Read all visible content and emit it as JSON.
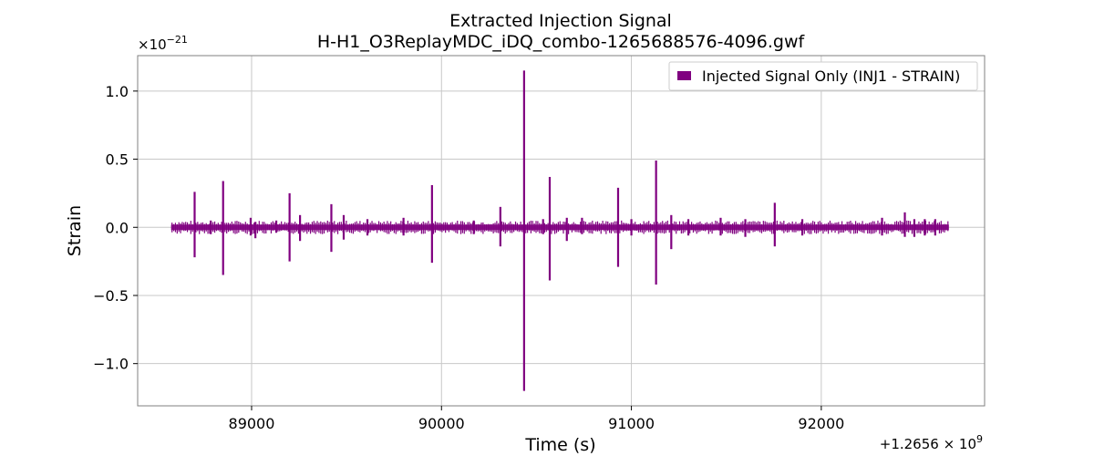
{
  "chart_data": {
    "type": "line",
    "title_line1": "Extracted Injection Signal",
    "title_line2": "H-H1_O3ReplayMDC_iDQ_combo-1265688576-4096.gwf",
    "xlabel": "Time (s)",
    "ylabel": "Strain",
    "x_offset_label": "+1.2656 × 10",
    "x_offset_exp": "9",
    "y_scale_label": "×10",
    "y_scale_exp": "−21",
    "xlim": [
      88400,
      92860
    ],
    "ylim": [
      -1.31,
      1.26
    ],
    "x_ticks": [
      89000,
      90000,
      91000,
      92000
    ],
    "x_tick_labels": [
      "89000",
      "90000",
      "91000",
      "92000"
    ],
    "y_ticks": [
      1.0,
      0.5,
      0.0,
      -0.5,
      -1.0
    ],
    "y_tick_labels": [
      "1.0",
      "0.5",
      "0.0",
      "−0.5",
      "−1.0"
    ],
    "grid": true,
    "legend_position": "upper right",
    "series": [
      {
        "name": "Injected Signal Only (INJ1 - STRAIN)",
        "color": "#800080",
        "x_range": [
          88576,
          92672
        ],
        "baseline_amplitude": 0.02,
        "spikes": [
          {
            "x": 88700,
            "max": 0.26,
            "min": -0.22
          },
          {
            "x": 88785,
            "max": 0.05,
            "min": -0.05
          },
          {
            "x": 88850,
            "max": 0.34,
            "min": -0.35
          },
          {
            "x": 88995,
            "max": 0.07,
            "min": -0.06
          },
          {
            "x": 89020,
            "max": 0.04,
            "min": -0.08
          },
          {
            "x": 89130,
            "max": 0.05,
            "min": -0.04
          },
          {
            "x": 89200,
            "max": 0.25,
            "min": -0.25
          },
          {
            "x": 89255,
            "max": 0.09,
            "min": -0.1
          },
          {
            "x": 89420,
            "max": 0.17,
            "min": -0.18
          },
          {
            "x": 89485,
            "max": 0.09,
            "min": -0.09
          },
          {
            "x": 89610,
            "max": 0.06,
            "min": -0.06
          },
          {
            "x": 89800,
            "max": 0.07,
            "min": -0.06
          },
          {
            "x": 89950,
            "max": 0.31,
            "min": -0.26
          },
          {
            "x": 90170,
            "max": 0.05,
            "min": -0.05
          },
          {
            "x": 90310,
            "max": 0.15,
            "min": -0.14
          },
          {
            "x": 90435,
            "max": 1.15,
            "min": -1.2
          },
          {
            "x": 90535,
            "max": 0.06,
            "min": -0.05
          },
          {
            "x": 90570,
            "max": 0.37,
            "min": -0.39
          },
          {
            "x": 90660,
            "max": 0.07,
            "min": -0.1
          },
          {
            "x": 90740,
            "max": 0.07,
            "min": -0.05
          },
          {
            "x": 90930,
            "max": 0.29,
            "min": -0.29
          },
          {
            "x": 91000,
            "max": 0.06,
            "min": -0.06
          },
          {
            "x": 91130,
            "max": 0.49,
            "min": -0.42
          },
          {
            "x": 91210,
            "max": 0.09,
            "min": -0.16
          },
          {
            "x": 91300,
            "max": 0.06,
            "min": -0.06
          },
          {
            "x": 91470,
            "max": 0.07,
            "min": -0.06
          },
          {
            "x": 91600,
            "max": 0.06,
            "min": -0.07
          },
          {
            "x": 91755,
            "max": 0.18,
            "min": -0.14
          },
          {
            "x": 91900,
            "max": 0.06,
            "min": -0.06
          },
          {
            "x": 92320,
            "max": 0.07,
            "min": -0.06
          },
          {
            "x": 92440,
            "max": 0.11,
            "min": -0.07
          },
          {
            "x": 92490,
            "max": 0.06,
            "min": -0.07
          },
          {
            "x": 92545,
            "max": 0.06,
            "min": -0.06
          },
          {
            "x": 92600,
            "max": 0.06,
            "min": -0.06
          }
        ]
      }
    ]
  }
}
